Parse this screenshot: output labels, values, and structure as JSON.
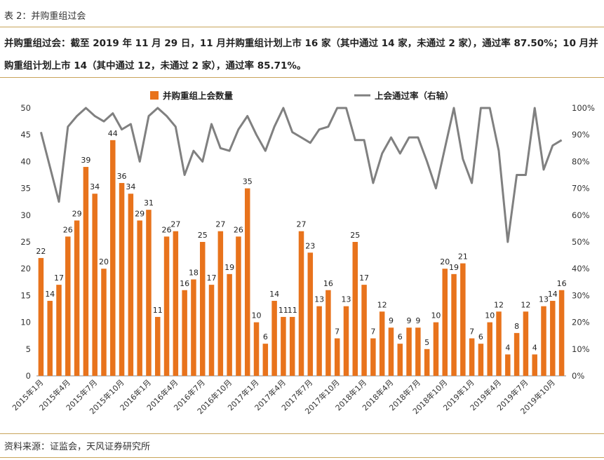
{
  "header": {
    "table_title": "表 2：并购重组过会",
    "summary": "并购重组过会：截至 2019 年 11 月 29 日，11 月并购重组计划上市 16 家（其中通过 14 家，未通过 2 家），通过率 87.50%；10 月并购重组计划上市 14（其中通过 12，未通过 2 家），通过率 85.71%。"
  },
  "source": "资料来源：证监会，天风证券研究所",
  "colors": {
    "bar": "#e8731c",
    "line": "#808080",
    "rule": "#c8a45a"
  },
  "chart_data": {
    "type": "bar+line",
    "legend": [
      "并购重组上会数量",
      "上会通过率（右轴）"
    ],
    "legend_position": "top",
    "y_left": {
      "min": 0,
      "max": 50,
      "ticks": [
        "0",
        "5",
        "10",
        "15",
        "20",
        "25",
        "30",
        "35",
        "40",
        "45",
        "50"
      ]
    },
    "y_right": {
      "min": 0,
      "max": 100,
      "ticks": [
        "0%",
        "10%",
        "20%",
        "30%",
        "40%",
        "50%",
        "60%",
        "70%",
        "80%",
        "90%",
        "100%"
      ]
    },
    "x_tick_labels": [
      {
        "index": 0,
        "label": "2015年1月"
      },
      {
        "index": 3,
        "label": "2015年4月"
      },
      {
        "index": 6,
        "label": "2015年7月"
      },
      {
        "index": 9,
        "label": "2015年10月"
      },
      {
        "index": 12,
        "label": "2016年1月"
      },
      {
        "index": 15,
        "label": "2016年4月"
      },
      {
        "index": 18,
        "label": "2016年7月"
      },
      {
        "index": 21,
        "label": "2016年10月"
      },
      {
        "index": 24,
        "label": "2017年1月"
      },
      {
        "index": 27,
        "label": "2017年4月"
      },
      {
        "index": 30,
        "label": "2017年7月"
      },
      {
        "index": 33,
        "label": "2017年10月"
      },
      {
        "index": 36,
        "label": "2018年1月"
      },
      {
        "index": 39,
        "label": "2018年4月"
      },
      {
        "index": 42,
        "label": "2018年7月"
      },
      {
        "index": 45,
        "label": "2018年10月"
      },
      {
        "index": 48,
        "label": "2019年1月"
      },
      {
        "index": 51,
        "label": "2019年4月"
      },
      {
        "index": 54,
        "label": "2019年7月"
      },
      {
        "index": 57,
        "label": "2019年10月"
      }
    ],
    "series": [
      {
        "name": "并购重组上会数量",
        "axis": "left",
        "kind": "bar",
        "values": [
          22,
          14,
          17,
          26,
          29,
          39,
          34,
          20,
          44,
          36,
          34,
          29,
          31,
          11,
          26,
          27,
          16,
          18,
          25,
          17,
          27,
          19,
          26,
          35,
          10,
          6,
          14,
          11,
          11,
          27,
          23,
          13,
          16,
          7,
          13,
          25,
          17,
          7,
          12,
          9,
          6,
          9,
          9,
          5,
          10,
          20,
          19,
          21,
          7,
          6,
          10,
          12,
          4,
          8,
          12,
          4,
          13,
          14,
          16
        ]
      },
      {
        "name": "上会通过率（右轴）",
        "axis": "right",
        "kind": "line",
        "values": [
          91,
          78,
          65,
          93,
          97,
          100,
          97,
          95,
          98,
          92,
          94,
          80,
          97,
          100,
          97,
          93,
          75,
          84,
          80,
          94,
          85,
          84,
          92,
          97,
          90,
          84,
          93,
          100,
          91,
          89,
          87,
          92,
          93,
          100,
          100,
          88,
          88,
          72,
          83,
          89,
          83,
          89,
          89,
          80,
          70,
          85,
          100,
          81,
          72,
          100,
          100,
          84,
          50,
          75,
          75,
          100,
          77,
          86,
          88
        ]
      }
    ]
  }
}
